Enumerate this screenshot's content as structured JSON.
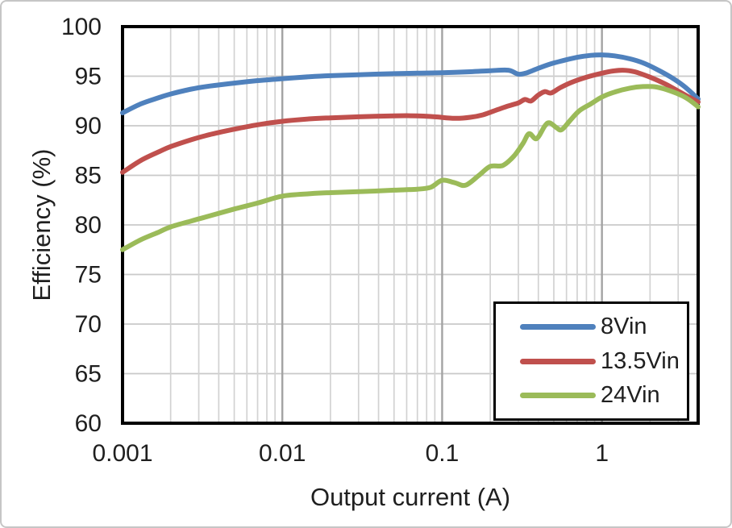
{
  "chart_data": {
    "type": "line",
    "title": "",
    "xlabel": "Output current (A)",
    "ylabel": "Efficiency (%)",
    "x_scale": "log",
    "xlim": [
      0.001,
      4
    ],
    "ylim": [
      60,
      100
    ],
    "x_tick_values": [
      0.001,
      0.01,
      0.1,
      1
    ],
    "x_tick_labels": [
      "0.001",
      "0.01",
      "0.1",
      "1"
    ],
    "y_tick_values": [
      60,
      65,
      70,
      75,
      80,
      85,
      90,
      95,
      100
    ],
    "y_tick_step": 5,
    "grid": true,
    "grid_minor_log_x": true,
    "legend_position": "inside-bottom-right",
    "frame_color": "#000000",
    "grid_minor_color": "#d2d2d2",
    "grid_major_color": "#a3a3a3",
    "grid_h_color": "#c9c9c9",
    "text_color": "#1f1f1f",
    "line_width": 6,
    "series": [
      {
        "name": "8Vin",
        "color": "#4f81bd",
        "points": [
          [
            0.001,
            91.3
          ],
          [
            0.0013,
            92.2
          ],
          [
            0.0017,
            92.85
          ],
          [
            0.002,
            93.2
          ],
          [
            0.0027,
            93.7
          ],
          [
            0.0035,
            94.0
          ],
          [
            0.005,
            94.3
          ],
          [
            0.007,
            94.55
          ],
          [
            0.01,
            94.75
          ],
          [
            0.015,
            94.95
          ],
          [
            0.02,
            95.05
          ],
          [
            0.03,
            95.15
          ],
          [
            0.05,
            95.25
          ],
          [
            0.07,
            95.3
          ],
          [
            0.1,
            95.35
          ],
          [
            0.15,
            95.45
          ],
          [
            0.2,
            95.55
          ],
          [
            0.26,
            95.6
          ],
          [
            0.3,
            95.2
          ],
          [
            0.34,
            95.35
          ],
          [
            0.4,
            95.8
          ],
          [
            0.48,
            96.25
          ],
          [
            0.58,
            96.6
          ],
          [
            0.7,
            96.9
          ],
          [
            0.85,
            97.1
          ],
          [
            1.0,
            97.15
          ],
          [
            1.2,
            97.05
          ],
          [
            1.5,
            96.75
          ],
          [
            1.8,
            96.35
          ],
          [
            2.2,
            95.7
          ],
          [
            2.7,
            94.9
          ],
          [
            3.2,
            94.1
          ],
          [
            3.6,
            93.4
          ],
          [
            4.0,
            92.7
          ]
        ]
      },
      {
        "name": "13.5Vin",
        "color": "#c0504d",
        "points": [
          [
            0.001,
            85.3
          ],
          [
            0.0013,
            86.5
          ],
          [
            0.0017,
            87.4
          ],
          [
            0.002,
            87.9
          ],
          [
            0.0027,
            88.6
          ],
          [
            0.0035,
            89.1
          ],
          [
            0.005,
            89.65
          ],
          [
            0.007,
            90.1
          ],
          [
            0.01,
            90.45
          ],
          [
            0.015,
            90.7
          ],
          [
            0.02,
            90.8
          ],
          [
            0.03,
            90.9
          ],
          [
            0.05,
            91.0
          ],
          [
            0.07,
            91.0
          ],
          [
            0.09,
            90.9
          ],
          [
            0.12,
            90.75
          ],
          [
            0.15,
            90.85
          ],
          [
            0.18,
            91.1
          ],
          [
            0.22,
            91.6
          ],
          [
            0.26,
            92.0
          ],
          [
            0.3,
            92.3
          ],
          [
            0.33,
            92.65
          ],
          [
            0.36,
            92.5
          ],
          [
            0.4,
            93.1
          ],
          [
            0.44,
            93.45
          ],
          [
            0.48,
            93.3
          ],
          [
            0.55,
            93.85
          ],
          [
            0.65,
            94.4
          ],
          [
            0.8,
            94.9
          ],
          [
            1.0,
            95.3
          ],
          [
            1.15,
            95.5
          ],
          [
            1.35,
            95.6
          ],
          [
            1.6,
            95.45
          ],
          [
            2.0,
            94.9
          ],
          [
            2.5,
            94.2
          ],
          [
            3.0,
            93.5
          ],
          [
            3.5,
            92.9
          ],
          [
            4.0,
            92.4
          ]
        ]
      },
      {
        "name": "24Vin",
        "color": "#9bbb59",
        "points": [
          [
            0.001,
            77.5
          ],
          [
            0.0013,
            78.5
          ],
          [
            0.0017,
            79.3
          ],
          [
            0.002,
            79.8
          ],
          [
            0.0027,
            80.4
          ],
          [
            0.0035,
            80.9
          ],
          [
            0.005,
            81.6
          ],
          [
            0.007,
            82.2
          ],
          [
            0.01,
            82.9
          ],
          [
            0.015,
            83.15
          ],
          [
            0.02,
            83.25
          ],
          [
            0.03,
            83.35
          ],
          [
            0.05,
            83.5
          ],
          [
            0.07,
            83.6
          ],
          [
            0.085,
            83.8
          ],
          [
            0.1,
            84.5
          ],
          [
            0.12,
            84.25
          ],
          [
            0.14,
            84.0
          ],
          [
            0.17,
            85.0
          ],
          [
            0.2,
            85.9
          ],
          [
            0.24,
            86.0
          ],
          [
            0.28,
            86.9
          ],
          [
            0.32,
            88.2
          ],
          [
            0.35,
            89.2
          ],
          [
            0.39,
            88.7
          ],
          [
            0.44,
            90.0
          ],
          [
            0.47,
            90.3
          ],
          [
            0.52,
            89.8
          ],
          [
            0.56,
            89.6
          ],
          [
            0.63,
            90.5
          ],
          [
            0.72,
            91.5
          ],
          [
            0.85,
            92.2
          ],
          [
            1.0,
            92.9
          ],
          [
            1.2,
            93.4
          ],
          [
            1.5,
            93.8
          ],
          [
            1.8,
            93.95
          ],
          [
            2.2,
            93.9
          ],
          [
            2.7,
            93.5
          ],
          [
            3.2,
            93.0
          ],
          [
            3.6,
            92.5
          ],
          [
            4.0,
            91.9
          ]
        ]
      }
    ]
  },
  "legend": {
    "items": [
      {
        "label": "8Vin"
      },
      {
        "label": "13.5Vin"
      },
      {
        "label": "24Vin"
      }
    ]
  }
}
